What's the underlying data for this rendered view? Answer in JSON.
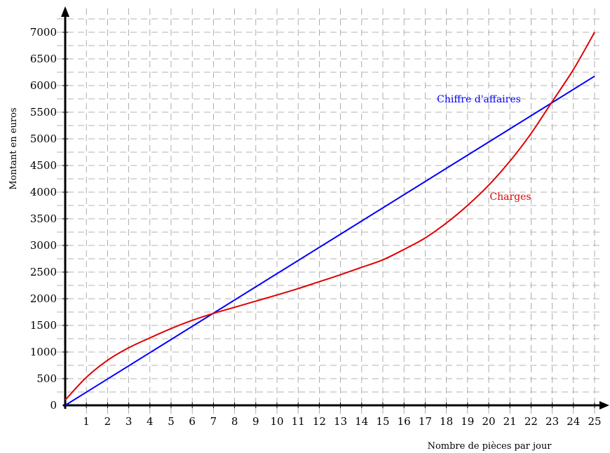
{
  "chart_data": {
    "type": "line",
    "title": "",
    "xlabel": "Nombre de pièces par jour",
    "ylabel": "Montant en euros",
    "xlim": [
      0,
      25
    ],
    "ylim": [
      0,
      7000
    ],
    "x_ticks": [
      "1",
      "2",
      "3",
      "4",
      "5",
      "6",
      "7",
      "8",
      "9",
      "10",
      "11",
      "12",
      "13",
      "14",
      "15",
      "16",
      "17",
      "18",
      "19",
      "20",
      "21",
      "22",
      "23",
      "24",
      "25"
    ],
    "y_ticks": [
      "0",
      "500",
      "1000",
      "1500",
      "2000",
      "2500",
      "3000",
      "3500",
      "4000",
      "4500",
      "5000",
      "5500",
      "6000",
      "6500",
      "7000"
    ],
    "grid": true,
    "grid_style": "dashed",
    "series": [
      {
        "name": "Chiffre d'affaires",
        "color": "#0000ff",
        "x": [
          0,
          25
        ],
        "y": [
          0,
          6175
        ]
      },
      {
        "name": "Charges",
        "color": "#e00000",
        "x": [
          0,
          1,
          2,
          3,
          4,
          5,
          6,
          7,
          8,
          9,
          10,
          11,
          12,
          13,
          14,
          15,
          16,
          17,
          18,
          19,
          20,
          21,
          22,
          23,
          24,
          25
        ],
        "y": [
          100,
          525,
          845,
          1080,
          1265,
          1440,
          1595,
          1725,
          1840,
          1955,
          2070,
          2190,
          2320,
          2450,
          2590,
          2730,
          2925,
          3140,
          3420,
          3750,
          4130,
          4580,
          5100,
          5700,
          6300,
          7000
        ]
      }
    ]
  }
}
